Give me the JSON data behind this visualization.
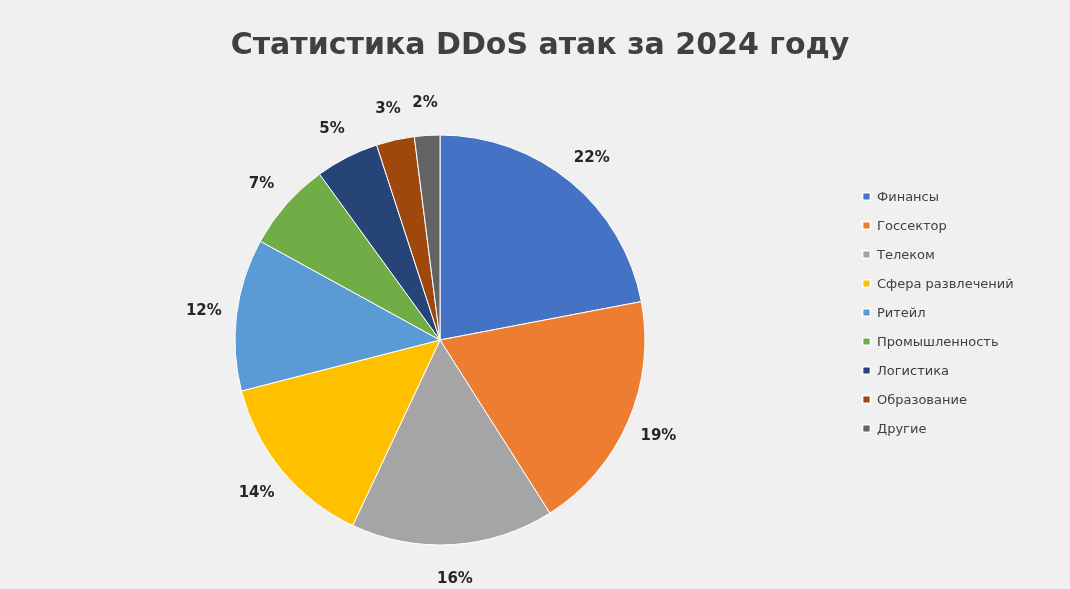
{
  "chart_data": {
    "type": "pie",
    "title": "Статистика DDoS атак за 2024 году",
    "categories": [
      "Финансы",
      "Госсектор",
      "Телеком",
      "Сфера развлечений",
      "Ритейл",
      "Промышленность",
      "Логистика",
      "Образование",
      "Другие"
    ],
    "values": [
      22,
      19,
      16,
      14,
      12,
      7,
      5,
      3,
      2
    ],
    "value_labels": [
      "22%",
      "19%",
      "16%",
      "14%",
      "12%",
      "7%",
      "5%",
      "3%",
      "2%"
    ],
    "colors": [
      "#4472c4",
      "#ed7d31",
      "#a5a5a5",
      "#ffc000",
      "#5b9bd5",
      "#70ad47",
      "#264478",
      "#9e480e",
      "#636363"
    ],
    "legend": "right"
  }
}
